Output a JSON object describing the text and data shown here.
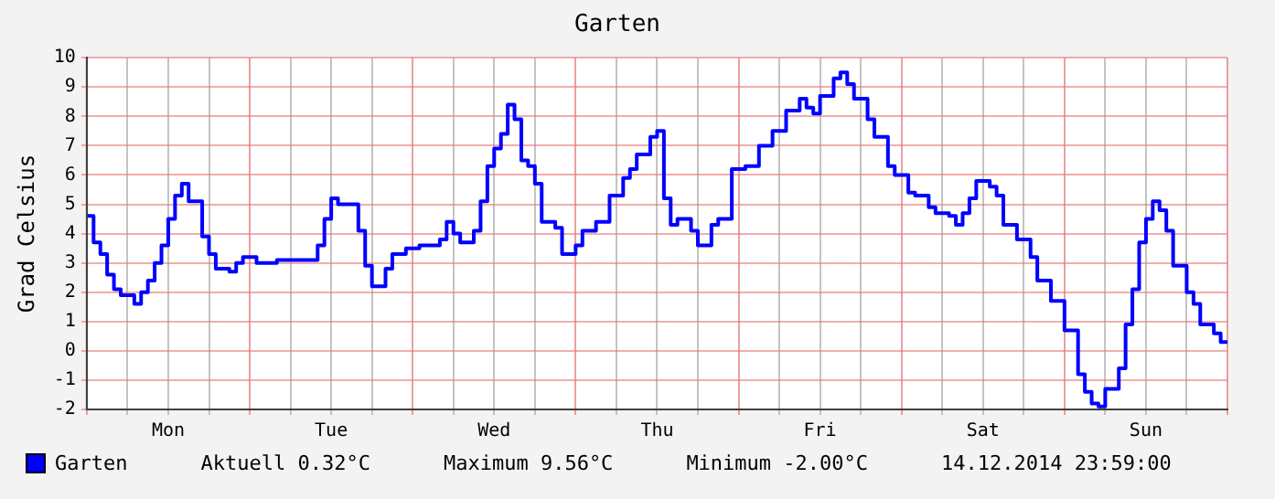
{
  "chart_data": {
    "type": "step",
    "title": "Garten",
    "ylabel": "Grad Celsius",
    "categories": [
      null,
      null,
      null,
      null,
      null,
      null,
      null,
      null,
      null,
      null,
      null,
      null,
      "Mon",
      null,
      null,
      null,
      null,
      null,
      null,
      null,
      null,
      null,
      null,
      null,
      null,
      null,
      null,
      null,
      null,
      null,
      null,
      null,
      null,
      null,
      null,
      null,
      "Tue",
      null,
      null,
      null,
      null,
      null,
      null,
      null,
      null,
      null,
      null,
      null,
      null,
      null,
      null,
      null,
      null,
      null,
      null,
      null,
      null,
      null,
      null,
      null,
      "Wed",
      null,
      null,
      null,
      null,
      null,
      null,
      null,
      null,
      null,
      null,
      null,
      null,
      null,
      null,
      null,
      null,
      null,
      null,
      null,
      null,
      null,
      null,
      null,
      "Thu",
      null,
      null,
      null,
      null,
      null,
      null,
      null,
      null,
      null,
      null,
      null,
      null,
      null,
      null,
      null,
      null,
      null,
      null,
      null,
      null,
      null,
      null,
      null,
      "Fri",
      null,
      null,
      null,
      null,
      null,
      null,
      null,
      null,
      null,
      null,
      null,
      null,
      null,
      null,
      null,
      null,
      null,
      null,
      null,
      null,
      null,
      null,
      null,
      "Sat",
      null,
      null,
      null,
      null,
      null,
      null,
      null,
      null,
      null,
      null,
      null,
      null,
      null,
      null,
      null,
      null,
      null,
      null,
      null,
      null,
      null,
      null,
      null,
      "Sun",
      null,
      null,
      null,
      null,
      null,
      null,
      null,
      null,
      null,
      null,
      null,
      null
    ],
    "ylim": [
      -2,
      10
    ],
    "yticks": [
      -2,
      -1,
      0,
      1,
      2,
      3,
      4,
      5,
      6,
      7,
      8,
      9,
      10
    ],
    "grid": true,
    "legend": "bottom left",
    "marker": "none",
    "line_style": "solid",
    "annotations": [
      "Aktuell 0.32°C",
      "Maximum 9.56°C",
      "Minimum -2.00°C",
      "14.12.2014 23:59:00"
    ],
    "series": [
      {
        "name": "Garten",
        "color": "#0000ff",
        "values": [
          4.6,
          3.7,
          3.3,
          2.6,
          2.1,
          1.9,
          1.9,
          1.6,
          2.0,
          2.4,
          3.0,
          3.6,
          4.5,
          5.3,
          5.7,
          5.1,
          5.1,
          3.9,
          3.3,
          2.8,
          2.8,
          2.7,
          3.0,
          3.2,
          3.2,
          3.0,
          3.0,
          3.0,
          3.1,
          3.1,
          3.1,
          3.1,
          3.1,
          3.1,
          3.6,
          4.5,
          5.2,
          5.0,
          5.0,
          5.0,
          4.1,
          2.9,
          2.2,
          2.2,
          2.8,
          3.3,
          3.3,
          3.5,
          3.5,
          3.6,
          3.6,
          3.6,
          3.8,
          4.4,
          4.0,
          3.7,
          3.7,
          4.1,
          5.1,
          6.3,
          6.9,
          7.4,
          8.4,
          7.9,
          6.5,
          6.3,
          5.7,
          4.4,
          4.4,
          4.2,
          3.3,
          3.3,
          3.6,
          4.1,
          4.1,
          4.4,
          4.4,
          5.3,
          5.3,
          5.9,
          6.2,
          6.7,
          6.7,
          7.3,
          7.5,
          5.2,
          4.3,
          4.5,
          4.5,
          4.1,
          3.6,
          3.6,
          4.3,
          4.5,
          4.5,
          6.2,
          6.2,
          6.3,
          6.3,
          7.0,
          7.0,
          7.5,
          7.5,
          8.2,
          8.2,
          8.6,
          8.3,
          8.1,
          8.7,
          8.7,
          9.3,
          9.5,
          9.1,
          8.6,
          8.6,
          7.9,
          7.3,
          7.3,
          6.3,
          6.0,
          6.0,
          5.4,
          5.3,
          5.3,
          4.9,
          4.7,
          4.7,
          4.6,
          4.3,
          4.7,
          5.2,
          5.8,
          5.8,
          5.6,
          5.3,
          4.3,
          4.3,
          3.8,
          3.8,
          3.2,
          2.4,
          2.4,
          1.7,
          1.7,
          0.7,
          0.7,
          -0.8,
          -1.4,
          -1.8,
          -1.9,
          -1.3,
          -1.3,
          -0.6,
          0.9,
          2.1,
          3.7,
          4.5,
          5.1,
          4.8,
          4.1,
          2.9,
          2.9,
          2.0,
          1.6,
          0.9,
          0.9,
          0.6,
          0.3,
          0.3
        ]
      }
    ]
  }
}
